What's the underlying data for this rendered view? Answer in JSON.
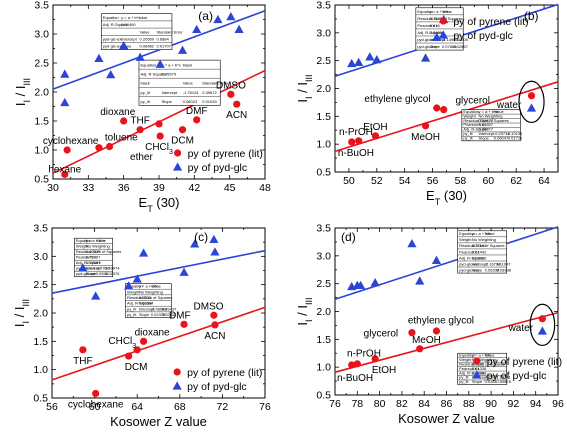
{
  "colors": {
    "red": "#e8131b",
    "blue": "#2b45d6",
    "black": "#000000"
  },
  "legend": {
    "red_label": "py of pyrene (lit)",
    "blue_label": "py of pyd-glc"
  },
  "chart_data": [
    {
      "type": "scatter",
      "panel_label": "(a)",
      "xlabel": "E_T (30)",
      "ylabel": "I_I / I_III",
      "xlim": [
        30,
        48
      ],
      "ylim": [
        0.5,
        3.5
      ],
      "xticks": [
        30,
        33,
        36,
        39,
        42,
        45,
        48
      ],
      "yticks": [
        0.5,
        1.0,
        1.5,
        2.0,
        2.5,
        3.0,
        3.5
      ],
      "legend_position": "bottom-right",
      "series": [
        {
          "name": "py of pyrene (lit)",
          "color": "red",
          "marker": "circle",
          "x": [
            31.0,
            31.2,
            33.9,
            34.8,
            36.0,
            37.4,
            39.1,
            39.0,
            41.0,
            42.2,
            45.1,
            45.6
          ],
          "y": [
            0.58,
            1.0,
            1.04,
            1.06,
            1.5,
            1.35,
            1.24,
            1.45,
            1.35,
            1.52,
            1.96,
            1.79
          ]
        },
        {
          "name": "py of pyd-glc",
          "color": "blue",
          "marker": "triangle",
          "x": [
            31.0,
            31.0,
            33.9,
            34.9,
            36.0,
            37.4,
            39.1,
            41.0,
            42.2,
            44.0,
            45.1,
            45.8
          ],
          "y": [
            1.82,
            2.31,
            2.58,
            2.3,
            2.8,
            2.6,
            2.48,
            2.72,
            3.08,
            3.25,
            3.3,
            3.08
          ]
        }
      ],
      "fits": [
        {
          "color": "red",
          "x": [
            30,
            48
          ],
          "y": [
            0.6,
            2.37
          ]
        },
        {
          "color": "blue",
          "x": [
            30,
            48
          ],
          "y": [
            2.05,
            3.4
          ]
        }
      ],
      "annotations": [
        {
          "text": "DMSO",
          "x": 45.1,
          "y": 1.96,
          "pos": "above"
        },
        {
          "text": "DMF",
          "x": 42.2,
          "y": 1.52,
          "pos": "above"
        },
        {
          "text": "ACN",
          "x": 45.6,
          "y": 1.79,
          "pos": "below"
        },
        {
          "text": "DCM",
          "x": 41.0,
          "y": 1.35,
          "pos": "below"
        },
        {
          "text": "CHCl3",
          "x": 39.0,
          "y": 1.24,
          "pos": "below"
        },
        {
          "text": "THF",
          "x": 37.4,
          "y": 1.35,
          "pos": "above"
        },
        {
          "text": "dioxane",
          "x": 35.5,
          "y": 1.5,
          "pos": "above"
        },
        {
          "text": "toluene",
          "x": 35.8,
          "y": 1.06,
          "pos": "above"
        },
        {
          "text": "ether",
          "x": 36.2,
          "y": 1.0,
          "pos": "below-right"
        },
        {
          "text": "cyclohexane",
          "x": 31.5,
          "y": 1.0,
          "pos": "above"
        },
        {
          "text": "hexane",
          "x": 31.0,
          "y": 0.85,
          "pos": "below"
        }
      ],
      "stat_tables": [
        {
          "x": 34.1,
          "y": 3.35,
          "w": 6.0,
          "h": 0.62,
          "rows": [
            [
              "Equation",
              "y = a + b*x",
              "blue"
            ],
            [
              "Adj. R-Square",
              "0.50490",
              ""
            ],
            [
              "",
              "",
              "Value",
              "Standard Error"
            ],
            [
              "pyd-glc-ext",
              "Intercept",
              "0.20550",
              "0.6884"
            ],
            [
              "pyd-glc-ext",
              "Slope",
              "0.06482",
              "0.01707"
            ]
          ]
        },
        {
          "x": 37.3,
          "y": 2.55,
          "w": 6.9,
          "h": 0.78,
          "rows": [
            [
              "Equation",
              "y = a + b*x",
              "black"
            ],
            [
              "Adj. R-Square",
              "0.85579",
              ""
            ],
            [
              "black",
              "",
              "Value",
              "Standard Error"
            ],
            [
              "py_lit",
              "Intercept",
              "-1.76124",
              "0.39672"
            ],
            [
              "py_lit",
              "Slope",
              "0.06023",
              "0.01033"
            ]
          ]
        }
      ]
    },
    {
      "type": "scatter",
      "panel_label": "(b)",
      "xlabel": "E_T (30)",
      "ylabel": "I_I / I_III",
      "xlim": [
        49,
        65
      ],
      "ylim": [
        0.5,
        3.5
      ],
      "xticks": [
        50,
        52,
        54,
        56,
        58,
        60,
        62,
        64
      ],
      "yticks": [
        0.5,
        1.0,
        1.5,
        2.0,
        2.5,
        3.0,
        3.5
      ],
      "legend_position": "top-left",
      "series": [
        {
          "name": "py of pyrene (lit)",
          "color": "red",
          "marker": "circle",
          "x": [
            50.2,
            50.7,
            51.9,
            55.5,
            56.3,
            56.8,
            63.1
          ],
          "y": [
            1.04,
            1.06,
            1.15,
            1.33,
            1.65,
            1.62,
            1.87
          ]
        },
        {
          "name": "py of pyd-glc",
          "color": "blue",
          "marker": "triangle",
          "x": [
            50.2,
            50.7,
            51.5,
            52.0,
            55.5,
            56.3,
            56.8,
            63.1
          ],
          "y": [
            2.45,
            2.47,
            2.57,
            2.52,
            2.55,
            2.92,
            3.24,
            1.65
          ]
        }
      ],
      "fits": [
        {
          "color": "red",
          "x": [
            49,
            65
          ],
          "y": [
            0.87,
            2.12
          ]
        },
        {
          "color": "blue",
          "x": [
            49,
            65
          ],
          "y": [
            2.22,
            3.51
          ]
        }
      ],
      "annotations": [
        {
          "text": "n-PrOH",
          "x": 50.5,
          "y": 1.06,
          "pos": "above"
        },
        {
          "text": "n-BuOH",
          "x": 50.5,
          "y": 1.04,
          "pos": "below"
        },
        {
          "text": "EtOH",
          "x": 51.9,
          "y": 1.15,
          "pos": "above"
        },
        {
          "text": "MeOH",
          "x": 55.5,
          "y": 1.33,
          "pos": "below"
        },
        {
          "text": "ethylene glycol",
          "x": 56.0,
          "y": 1.65,
          "pos": "above-left"
        },
        {
          "text": "glycerol",
          "x": 57.5,
          "y": 1.62,
          "pos": "above-right"
        },
        {
          "text": "water",
          "x": 62.8,
          "y": 1.72,
          "pos": "left"
        }
      ],
      "ellipse": {
        "x": 63.1,
        "y": 1.76,
        "rx": 0.9,
        "ry": 0.37
      },
      "stat_tables": [
        {
          "x": 54.8,
          "y": 3.45,
          "w": 3.4,
          "h": 0.76,
          "rows": [
            [
              "Equation",
              "y = a + b*x",
              "Value"
            ],
            [
              "Residual Sum of Squares",
              "0.14972",
              ""
            ],
            [
              "Pearson's r",
              "0.616",
              ""
            ],
            [
              "Adj. R-Square",
              "0.58038",
              ""
            ],
            [
              "pyd-glc-ext",
              "Intercept",
              "-1.14905",
              "1.50005"
            ],
            [
              "pyd-glc-ext",
              "Slope",
              "0.07866",
              "0.02857"
            ]
          ]
        },
        {
          "x": 58.1,
          "y": 1.62,
          "w": 4.2,
          "h": 0.56,
          "rows": [
            [
              "Equation",
              "y = a + b*x",
              "Value"
            ],
            [
              "Weight",
              "No Weighting",
              ""
            ],
            [
              "Residual Sum of Squares",
              "0.02877",
              ""
            ],
            [
              "Pearson's r",
              "0.86657",
              ""
            ],
            [
              "Adj. R-Square",
              "0.66077",
              ""
            ],
            [
              "py_lit",
              "Intercept",
              "-0.25734",
              "0.10135"
            ],
            [
              "py_lit",
              "Slope",
              "0.06047",
              "0.01716"
            ]
          ]
        }
      ]
    },
    {
      "type": "scatter",
      "panel_label": "(c)",
      "xlabel": "Kosower Z value",
      "ylabel": "I_I / I_III",
      "xlim": [
        56,
        76
      ],
      "ylim": [
        0.5,
        3.5
      ],
      "xticks": [
        56,
        60,
        64,
        68,
        72,
        76
      ],
      "yticks": [
        0.5,
        1.0,
        1.5,
        2.0,
        2.5,
        3.0,
        3.5
      ],
      "legend_position": "bottom-right",
      "series": [
        {
          "name": "py of pyrene (lit)",
          "color": "red",
          "marker": "circle",
          "x": [
            58.9,
            60.1,
            63.2,
            64.0,
            64.6,
            68.4,
            71.2,
            71.3
          ],
          "y": [
            1.35,
            0.58,
            1.24,
            1.35,
            1.5,
            1.8,
            1.96,
            1.79
          ]
        },
        {
          "name": "py of pyd-glc",
          "color": "blue",
          "marker": "triangle",
          "x": [
            58.9,
            60.1,
            63.2,
            64.0,
            64.6,
            68.4,
            69.4,
            71.2,
            71.3
          ],
          "y": [
            2.8,
            2.3,
            2.48,
            2.6,
            3.06,
            2.72,
            3.22,
            3.3,
            3.08
          ]
        }
      ],
      "fits": [
        {
          "color": "red",
          "x": [
            56,
            76
          ],
          "y": [
            0.82,
            2.1
          ]
        },
        {
          "color": "blue",
          "x": [
            56,
            76
          ],
          "y": [
            2.35,
            3.1
          ]
        }
      ],
      "annotations": [
        {
          "text": "THF",
          "x": 58.9,
          "y": 1.35,
          "pos": "below"
        },
        {
          "text": "cyclohexane",
          "x": 60.1,
          "y": 0.58,
          "pos": "below"
        },
        {
          "text": "CHCl3",
          "x": 62.6,
          "y": 1.35,
          "pos": "above"
        },
        {
          "text": "DCM",
          "x": 63.9,
          "y": 1.24,
          "pos": "below"
        },
        {
          "text": "dioxane",
          "x": 65.4,
          "y": 1.5,
          "pos": "above"
        },
        {
          "text": "DMF",
          "x": 68.0,
          "y": 1.8,
          "pos": "above"
        },
        {
          "text": "DMSO",
          "x": 70.7,
          "y": 1.96,
          "pos": "above"
        },
        {
          "text": "ACN",
          "x": 71.3,
          "y": 1.79,
          "pos": "below"
        }
      ],
      "stat_tables": [
        {
          "x": 58.1,
          "y": 3.32,
          "w": 3.6,
          "h": 0.68,
          "rows": [
            [
              "Equation",
              "y = a + b*x",
              "Value"
            ],
            [
              "Weight",
              "No Weighting",
              ""
            ],
            [
              "Residual Sum of Squares",
              "0.40379",
              ""
            ],
            [
              "Pearson's r",
              "0.79967",
              ""
            ],
            [
              "Adj. R-Square",
              "0.17097",
              ""
            ],
            [
              "pyd-glc-ext",
              "Intercept",
              "-0.7956",
              "1.49974"
            ],
            [
              "pyd-glc-ext",
              "Slope",
              "0.0504",
              "0.02376"
            ]
          ]
        },
        {
          "x": 62.9,
          "y": 2.52,
          "w": 4.3,
          "h": 0.6,
          "rows": [
            [
              "Equation",
              "y = a + b*x",
              "Value"
            ],
            [
              "Weight",
              "No Weighting",
              ""
            ],
            [
              "Residual Sum of Squares",
              "0.6232",
              ""
            ],
            [
              "Adj. R-Square",
              "0.62384",
              ""
            ],
            [
              "py_lit",
              "Intercept",
              "-0.46548",
              "0.99437"
            ],
            [
              "py_lit",
              "Slope",
              "0.02379",
              "0.02132"
            ]
          ]
        }
      ]
    },
    {
      "type": "scatter",
      "panel_label": "(d)",
      "xlabel": "Kosower Z value",
      "ylabel": "I_I / I_III",
      "xlim": [
        76,
        96
      ],
      "ylim": [
        0.5,
        3.5
      ],
      "xticks": [
        76,
        78,
        80,
        82,
        84,
        86,
        88,
        90,
        92,
        94,
        96
      ],
      "yticks": [
        0.5,
        1.0,
        1.5,
        2.0,
        2.5,
        3.0,
        3.5
      ],
      "legend_position": "bottom-right",
      "series": [
        {
          "name": "py of pyrene (lit)",
          "color": "red",
          "marker": "circle",
          "x": [
            77.5,
            78.0,
            79.6,
            82.9,
            83.6,
            85.1,
            94.6
          ],
          "y": [
            1.04,
            1.06,
            1.15,
            1.62,
            1.33,
            1.65,
            1.87
          ]
        },
        {
          "name": "py of pyd-glc",
          "color": "blue",
          "marker": "triangle",
          "x": [
            77.5,
            78.0,
            78.3,
            79.6,
            82.9,
            83.6,
            85.1,
            94.6
          ],
          "y": [
            2.45,
            2.47,
            2.47,
            2.52,
            3.22,
            2.55,
            2.92,
            1.65
          ]
        }
      ],
      "fits": [
        {
          "color": "red",
          "x": [
            76,
            96
          ],
          "y": [
            0.91,
            1.98
          ]
        },
        {
          "color": "blue",
          "x": [
            76,
            96
          ],
          "y": [
            2.22,
            3.52
          ]
        }
      ],
      "annotations": [
        {
          "text": "glycerol",
          "x": 82.2,
          "y": 1.62,
          "pos": "left"
        },
        {
          "text": "ethylene glycol",
          "x": 85.5,
          "y": 1.68,
          "pos": "above"
        },
        {
          "text": "n-PrOH",
          "x": 78.6,
          "y": 1.08,
          "pos": "above"
        },
        {
          "text": "n-BuOH",
          "x": 77.8,
          "y": 1.0,
          "pos": "below"
        },
        {
          "text": "EtOH",
          "x": 80.4,
          "y": 1.15,
          "pos": "below"
        },
        {
          "text": "MeOH",
          "x": 84.2,
          "y": 1.33,
          "pos": "above"
        },
        {
          "text": "water",
          "x": 94.3,
          "y": 1.72,
          "pos": "left"
        }
      ],
      "ellipse": {
        "x": 94.6,
        "y": 1.76,
        "rx": 1.1,
        "ry": 0.37
      },
      "stat_tables": [
        {
          "x": 87.0,
          "y": 3.45,
          "w": 4.4,
          "h": 0.76,
          "rows": [
            [
              "Equation",
              "y = a + b*x",
              "Value"
            ],
            [
              "Weight",
              "No Weighting",
              ""
            ],
            [
              "Residual Sum of Squares",
              "0.27192",
              ""
            ],
            [
              "Pearson's r",
              "0.61442",
              ""
            ],
            [
              "Adj. R-Square",
              "0.03026",
              ""
            ],
            [
              "pyd-glc-ext",
              "Intercept",
              "-2.16794",
              "3.11047"
            ],
            [
              "pyd-glc-ext",
              "Slope",
              "0.06208",
              "0.03998"
            ]
          ]
        },
        {
          "x": 87.0,
          "y": 1.25,
          "w": 4.4,
          "h": 0.56,
          "rows": [
            [
              "Equation",
              "y = a + b*x",
              "Value"
            ],
            [
              "Weight",
              "No Weighting",
              ""
            ],
            [
              "Residual Sum of Squares",
              "0.0681",
              ""
            ],
            [
              "Pearson's r",
              "0.61338",
              ""
            ],
            [
              "Adj. R-Square",
              "0.27288",
              ""
            ],
            [
              "py_lit",
              "Intercept",
              "-0.5837",
              "1.69741"
            ],
            [
              "py_lit",
              "Slope",
              "0.0361",
              "0.00876"
            ]
          ]
        }
      ]
    }
  ]
}
